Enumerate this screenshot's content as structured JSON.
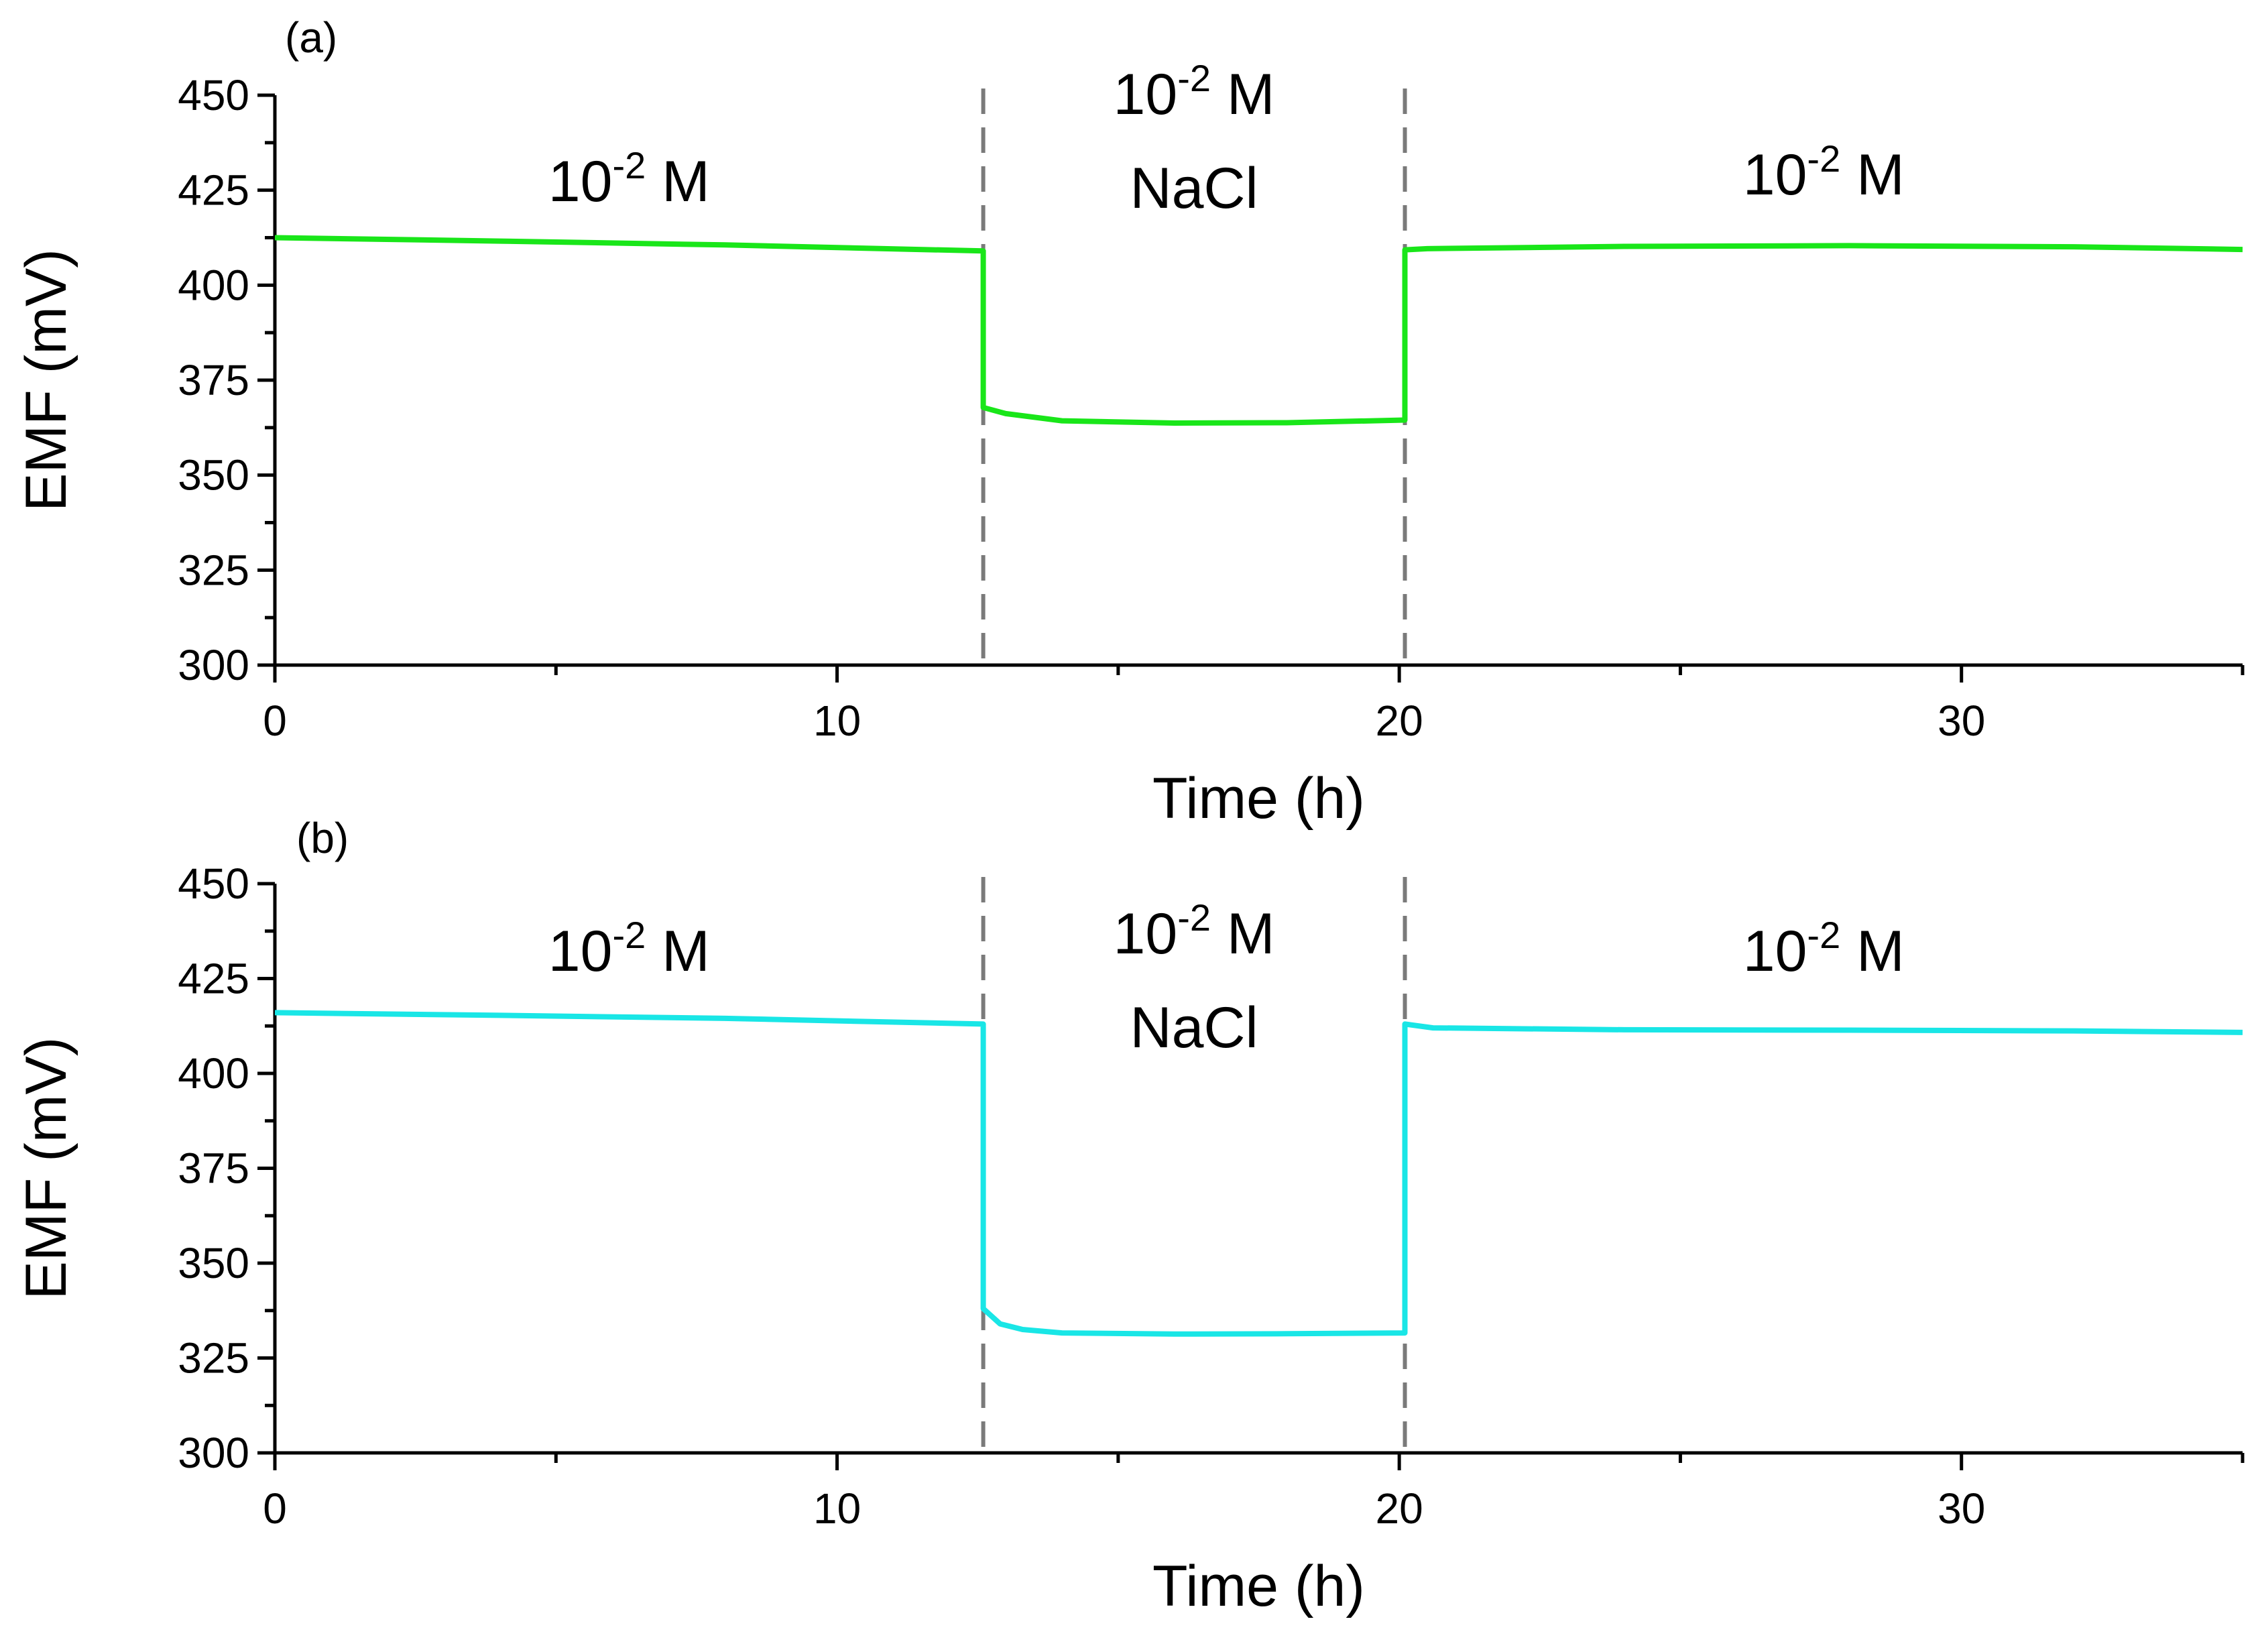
{
  "figure": {
    "panels": [
      {
        "panel_label": "(a)",
        "color": "#19e619",
        "regions": [
          {
            "base": "10",
            "exp": "-2",
            "unit": " M",
            "line2": ""
          },
          {
            "base": "10",
            "exp": "-2",
            "unit": " M",
            "line2": "NaCl"
          },
          {
            "base": "10",
            "exp": "-2",
            "unit": " M",
            "line2": ""
          }
        ]
      },
      {
        "panel_label": "(b)",
        "color": "#19e6e6",
        "regions": [
          {
            "base": "10",
            "exp": "-2",
            "unit": " M",
            "line2": ""
          },
          {
            "base": "10",
            "exp": "-2",
            "unit": " M",
            "line2": "NaCl"
          },
          {
            "base": "10",
            "exp": "-2",
            "unit": " M",
            "line2": ""
          }
        ]
      }
    ]
  },
  "chart_data": [
    {
      "type": "line",
      "title": "",
      "panel_label": "(a)",
      "xlabel": "Time (h)",
      "ylabel": "EMF (mV)",
      "xlim": [
        0,
        35
      ],
      "ylim": [
        300,
        450
      ],
      "xticks": [
        0,
        10,
        20,
        30
      ],
      "yticks": [
        300,
        325,
        350,
        375,
        400,
        425,
        450
      ],
      "grid": false,
      "vlines": [
        12.6,
        20.1
      ],
      "annotations": [
        "10-2 M",
        "10-2 M NaCl",
        "10-2 M"
      ],
      "series": [
        {
          "color": "#19e619",
          "x": [
            0,
            4,
            8,
            12.6,
            12.6,
            13.0,
            14.0,
            16.0,
            18.0,
            20.1,
            20.1,
            20.5,
            24,
            28,
            32,
            35
          ],
          "y": [
            412.5,
            411.6,
            410.6,
            409.0,
            367.8,
            366.2,
            364.3,
            363.7,
            363.8,
            364.5,
            409.3,
            409.6,
            410.2,
            410.4,
            410.1,
            409.4
          ]
        }
      ]
    },
    {
      "type": "line",
      "title": "",
      "panel_label": "(b)",
      "xlabel": "Time (h)",
      "ylabel": "EMF (mV)",
      "xlim": [
        0,
        35
      ],
      "ylim": [
        300,
        450
      ],
      "xticks": [
        0,
        10,
        20,
        30
      ],
      "yticks": [
        300,
        325,
        350,
        375,
        400,
        425,
        450
      ],
      "grid": false,
      "vlines": [
        12.6,
        20.1
      ],
      "annotations": [
        "10-2 M",
        "10-2 M NaCl",
        "10-2 M"
      ],
      "series": [
        {
          "color": "#19e6e6",
          "x": [
            0,
            4,
            8,
            12.6,
            12.6,
            12.9,
            13.3,
            14.0,
            16.0,
            18.0,
            20.1,
            20.1,
            20.6,
            24,
            28,
            32,
            35
          ],
          "y": [
            416.0,
            415.3,
            414.5,
            413.0,
            338.0,
            334.0,
            332.5,
            331.6,
            331.3,
            331.4,
            331.6,
            413.0,
            412.0,
            411.5,
            411.4,
            411.2,
            410.8
          ]
        }
      ]
    }
  ]
}
